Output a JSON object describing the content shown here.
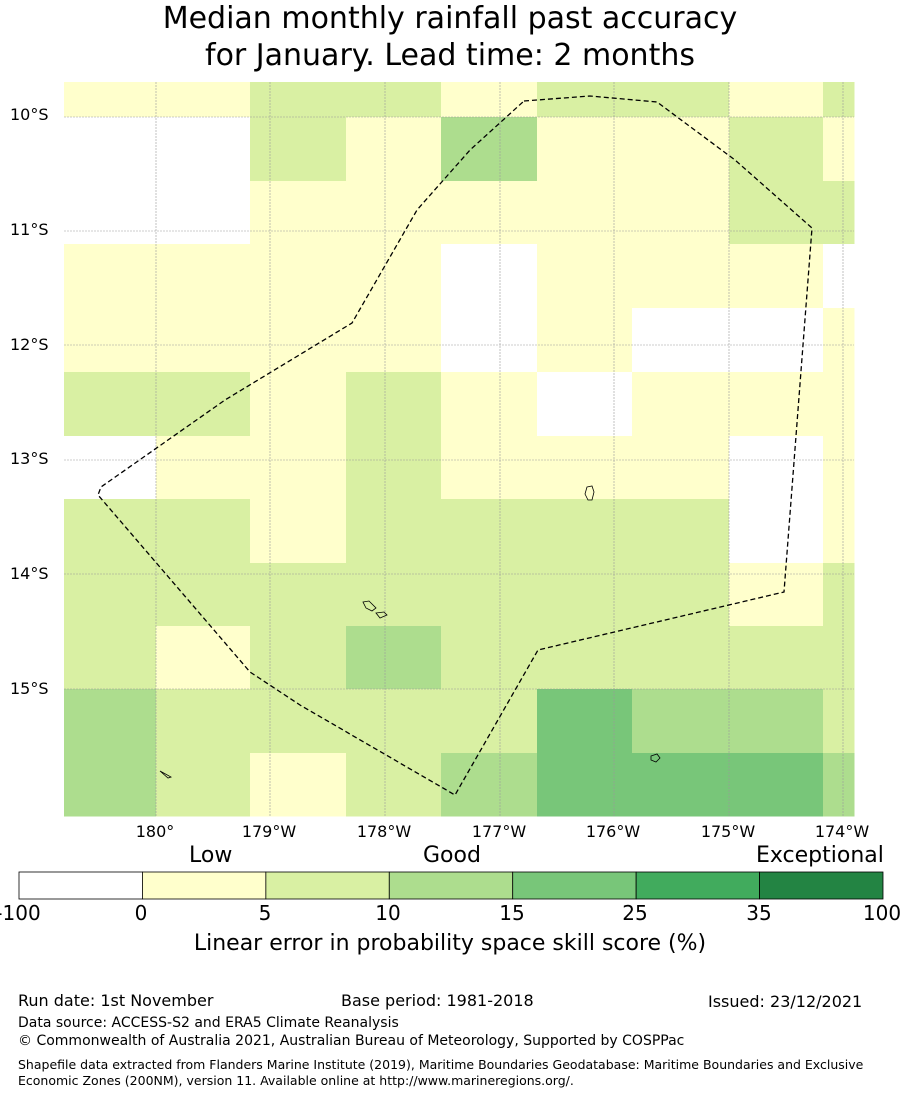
{
  "title": {
    "line1": "Median monthly rainfall past accuracy",
    "line2": "for January. Lead time: 2 months"
  },
  "map": {
    "lat_labels": [
      "10°S",
      "11°S",
      "12°S",
      "13°S",
      "14°S",
      "15°S"
    ],
    "lon_labels": [
      "180°",
      "179°W",
      "178°W",
      "177°W",
      "176°W",
      "175°W",
      "174°W"
    ],
    "boundary_style": "dashed",
    "grid": true,
    "cell_classes": [
      [
        1,
        1,
        2,
        2,
        1,
        2,
        2,
        1,
        2
      ],
      [
        0,
        0,
        2,
        1,
        3,
        1,
        1,
        2,
        1
      ],
      [
        0,
        0,
        1,
        1,
        1,
        1,
        1,
        2,
        2
      ],
      [
        1,
        1,
        1,
        1,
        0,
        1,
        1,
        1,
        0
      ],
      [
        1,
        1,
        1,
        1,
        0,
        1,
        0,
        0,
        1
      ],
      [
        2,
        2,
        1,
        2,
        1,
        0,
        1,
        1,
        1
      ],
      [
        0,
        1,
        1,
        2,
        1,
        1,
        1,
        0,
        1
      ],
      [
        2,
        2,
        1,
        2,
        2,
        2,
        2,
        0,
        1
      ],
      [
        2,
        2,
        2,
        2,
        2,
        2,
        2,
        1,
        2
      ],
      [
        2,
        1,
        2,
        3,
        2,
        2,
        2,
        2,
        2
      ],
      [
        3,
        2,
        2,
        2,
        2,
        4,
        3,
        3,
        2
      ],
      [
        3,
        2,
        1,
        2,
        3,
        4,
        4,
        4,
        3
      ]
    ]
  },
  "legend": {
    "category_labels": [
      "Low",
      "Good",
      "Exceptional"
    ],
    "tick_labels": [
      "-100",
      "0",
      "5",
      "10",
      "15",
      "25",
      "35",
      "100"
    ],
    "colors": [
      "#ffffff",
      "#ffffcc",
      "#d9f0a3",
      "#addd8e",
      "#78c679",
      "#41ab5d",
      "#238443"
    ],
    "title": "Linear error in probability space skill score (%)"
  },
  "footer": {
    "run_date": "Run date: 1st November",
    "base_period": "Base period: 1981-2018",
    "issued": "Issued: 23/12/2021",
    "data_source": "Data source: ACCESS-S2 and ERA5 Climate Reanalysis",
    "copyright": "© Commonwealth of Australia 2021, Australian Bureau of Meteorology, Supported by COSPPac",
    "shapefile_note": "Shapefile data extracted from Flanders Marine Institute (2019), Maritime Boundaries Geodatabase: Maritime Boundaries and Exclusive Economic Zones (200NM), version 11. Available online at http://www.marineregions.org/."
  }
}
